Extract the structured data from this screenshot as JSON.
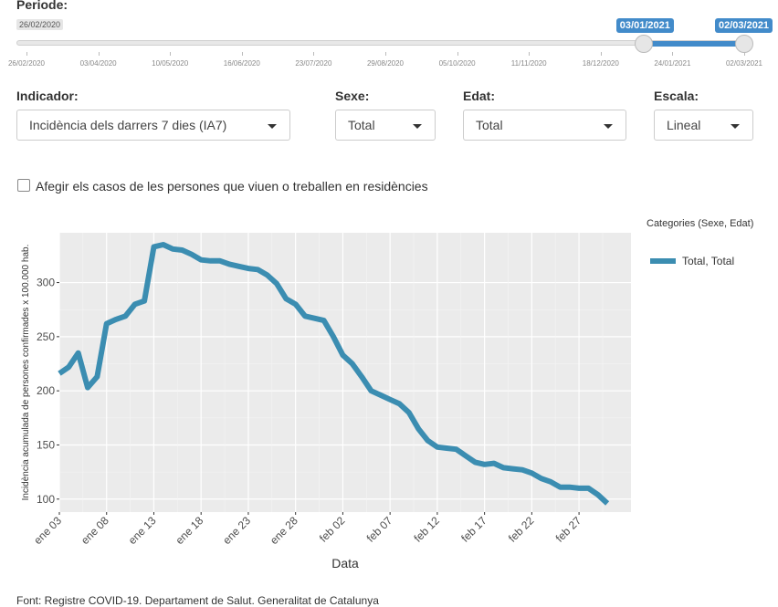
{
  "period": {
    "label": "Periode:",
    "min_label": "26/02/2020",
    "start_label": "03/01/2021",
    "end_label": "02/03/2021",
    "selected_start_fraction": 0.8598,
    "selected_end_fraction": 1.0,
    "ticks": [
      "26/02/2020",
      "03/04/2020",
      "10/05/2020",
      "16/06/2020",
      "23/07/2020",
      "29/08/2020",
      "05/10/2020",
      "11/11/2020",
      "18/12/2020",
      "24/01/2021",
      "02/03/2021"
    ]
  },
  "filters": {
    "indicador": {
      "label": "Indicador:",
      "value": "Incidència dels darrers 7 dies (IA7)"
    },
    "sexe": {
      "label": "Sexe:",
      "value": "Total"
    },
    "edat": {
      "label": "Edat:",
      "value": "Total"
    },
    "escala": {
      "label": "Escala:",
      "value": "Lineal"
    }
  },
  "residencies_checkbox": {
    "label": "Afegir els casos de les persones que viuen o treballen en residències",
    "checked": false
  },
  "legend": {
    "title": "Categories (Sexe, Edat)",
    "items": [
      {
        "label": "Total, Total",
        "color": "#3b8db1"
      }
    ]
  },
  "source": "Font: Registre COVID-19. Departament de Salut. Generalitat de Catalunya",
  "chart_data": {
    "type": "line",
    "xlabel": "Data",
    "ylabel": "Incidència acumulada de persones confirmades x 100.000 hab.",
    "xlim": [
      0,
      60.5
    ],
    "ylim": [
      88,
      346
    ],
    "yticks": [
      100,
      150,
      200,
      250,
      300
    ],
    "xticks": [
      {
        "label": "ene 03",
        "x": 0
      },
      {
        "label": "ene 08",
        "x": 5
      },
      {
        "label": "ene 13",
        "x": 10
      },
      {
        "label": "ene 18",
        "x": 15
      },
      {
        "label": "ene 23",
        "x": 20
      },
      {
        "label": "ene 28",
        "x": 25
      },
      {
        "label": "feb 02",
        "x": 30
      },
      {
        "label": "feb 07",
        "x": 35
      },
      {
        "label": "feb 12",
        "x": 40
      },
      {
        "label": "feb 17",
        "x": 45
      },
      {
        "label": "feb 22",
        "x": 50
      },
      {
        "label": "feb 27",
        "x": 55
      }
    ],
    "grid": true,
    "series": [
      {
        "name": "Total, Total",
        "color": "#3b8db1",
        "x": [
          0,
          1,
          2,
          3,
          4,
          5,
          6,
          7,
          8,
          9,
          10,
          11,
          12,
          13,
          14,
          15,
          16,
          17,
          18,
          19,
          20,
          21,
          22,
          23,
          24,
          25,
          26,
          27,
          28,
          29,
          30,
          31,
          32,
          33,
          34,
          35,
          36,
          37,
          38,
          39,
          40,
          41,
          42,
          43,
          44,
          45,
          46,
          47,
          48,
          49,
          50,
          51,
          52,
          53,
          54,
          55,
          56,
          57,
          58
        ],
        "values": [
          216,
          222,
          235,
          203,
          213,
          262,
          266,
          269,
          280,
          283,
          333,
          335,
          331,
          330,
          326,
          321,
          320,
          320,
          317,
          315,
          313,
          312,
          307,
          299,
          285,
          280,
          269,
          267,
          265,
          250,
          233,
          225,
          213,
          200,
          196,
          192,
          188,
          180,
          165,
          154,
          148,
          147,
          146,
          140,
          134,
          132,
          133,
          129,
          128,
          127,
          124,
          119,
          116,
          111,
          111,
          110,
          110,
          104,
          96
        ]
      }
    ]
  }
}
